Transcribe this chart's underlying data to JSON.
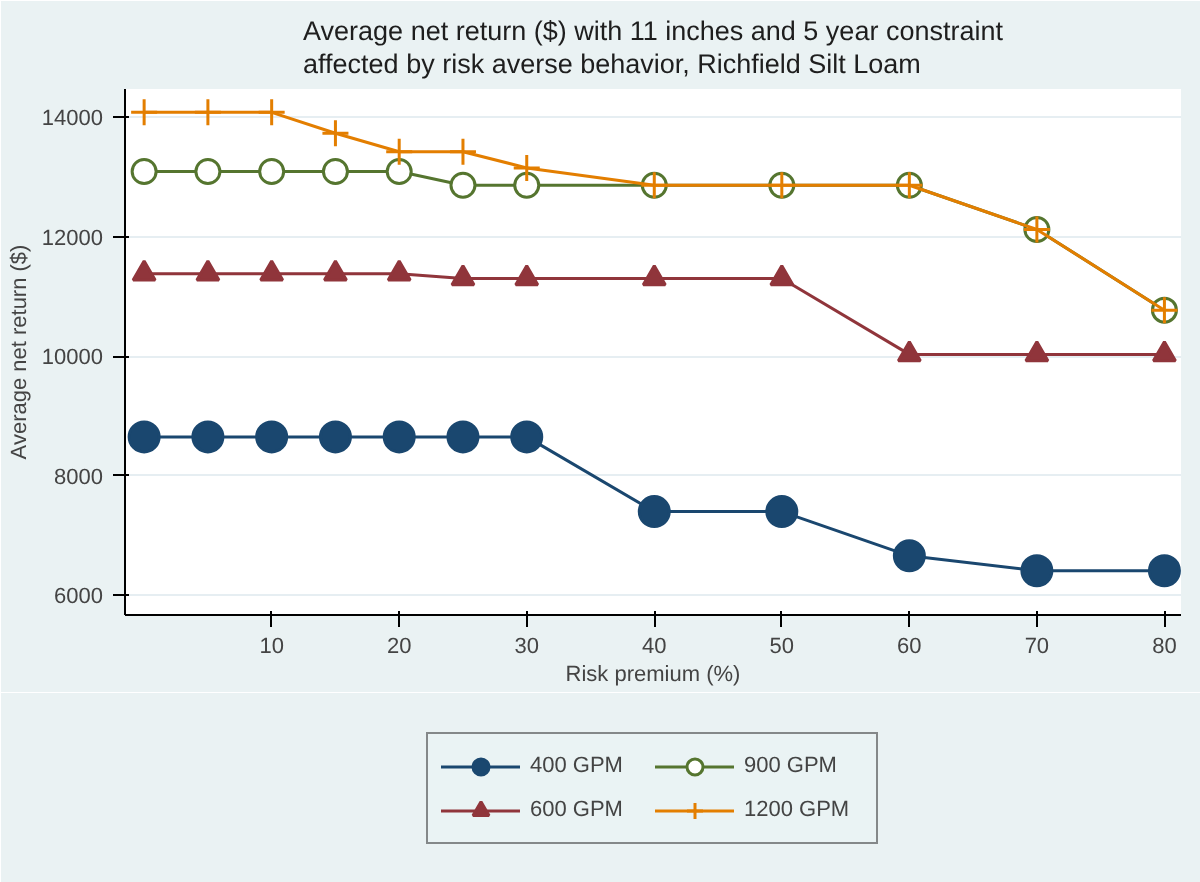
{
  "chart_data": {
    "type": "line",
    "title": "Average net return ($) with 11 inches and 5 year constraint\naffected by risk averse behavior, Richfield Silt Loam",
    "xlabel": "Risk premium (%)",
    "ylabel": "Average net return ($)",
    "x": [
      0,
      5,
      10,
      15,
      20,
      25,
      30,
      40,
      50,
      60,
      70,
      80
    ],
    "series": [
      {
        "name": "400 GPM",
        "color": "#1a476f",
        "marker": "circle",
        "values": [
          8650,
          8650,
          8650,
          8650,
          8650,
          8650,
          8650,
          7400,
          7400,
          6660,
          6410,
          6410
        ]
      },
      {
        "name": "600 GPM",
        "color": "#90353b",
        "marker": "triangle",
        "values": [
          11380,
          11380,
          11380,
          11380,
          11380,
          11300,
          11300,
          11300,
          11300,
          10030,
          10030,
          10030
        ]
      },
      {
        "name": "900 GPM",
        "color": "#55752f",
        "marker": "circle",
        "values": [
          13090,
          13090,
          13090,
          13090,
          13090,
          12860,
          12860,
          12860,
          12860,
          12860,
          12120,
          10770
        ]
      },
      {
        "name": "1200 GPM",
        "color": "#e37e00",
        "marker": "cross",
        "values": [
          14080,
          14080,
          14080,
          13730,
          13420,
          13420,
          13150,
          12860,
          12860,
          12860,
          12120,
          10770
        ]
      }
    ],
    "xlim": [
      -1.5,
      81.3
    ],
    "ylim": [
      5670,
      14470
    ],
    "xticks": [
      10,
      20,
      30,
      40,
      50,
      60,
      70,
      80
    ],
    "yticks": [
      6000,
      8000,
      10000,
      12000,
      14000
    ],
    "grid": "y",
    "legend": "bottom"
  }
}
